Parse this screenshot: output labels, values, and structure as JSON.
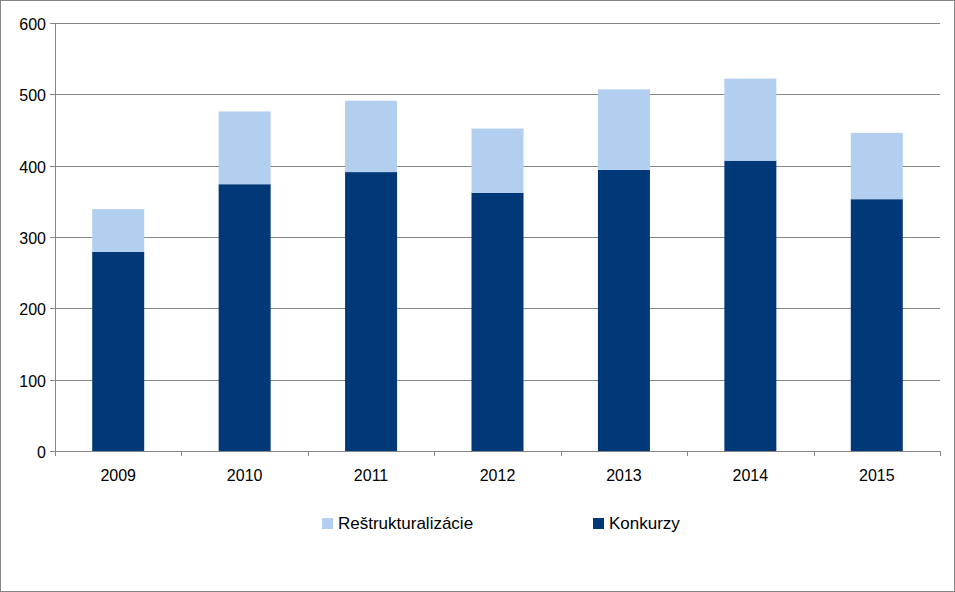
{
  "chart_data": {
    "type": "bar",
    "stacked": true,
    "categories": [
      "2009",
      "2010",
      "2011",
      "2012",
      "2013",
      "2014",
      "2015"
    ],
    "series": [
      {
        "name": "Konkurzy",
        "color": "#003878",
        "values": [
          279,
          374,
          391,
          362,
          394,
          407,
          353
        ]
      },
      {
        "name": "Reštrukturalizácie",
        "color": "#b3cff0",
        "values": [
          60,
          102,
          100,
          90,
          113,
          115,
          93
        ]
      }
    ],
    "ylim": [
      0,
      600
    ],
    "yticks": [
      0,
      100,
      200,
      300,
      400,
      500,
      600
    ],
    "grid": true,
    "legend": "bottom"
  }
}
